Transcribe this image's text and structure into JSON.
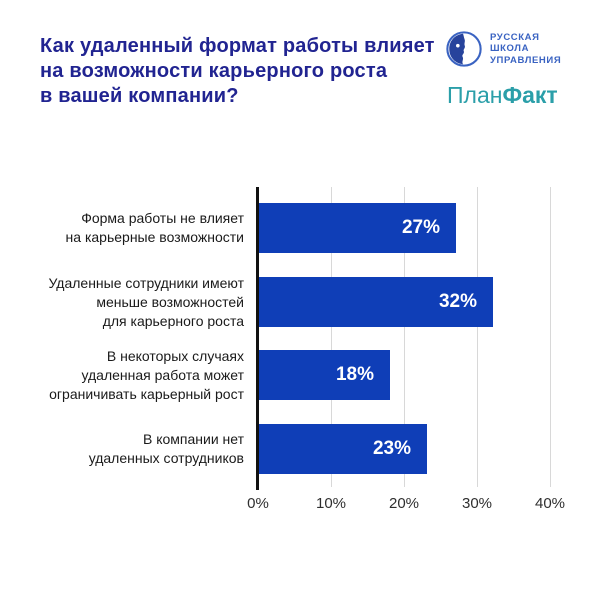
{
  "header": {
    "title": "Как удаленный формат работы влияет\nна возможности карьерного роста\nв вашей компании?",
    "rsu_logo": {
      "name": "Русская школа управления",
      "lines": [
        "РУССКАЯ",
        "ШКОЛА",
        "УПРАВЛЕНИЯ"
      ]
    },
    "planfact_logo": {
      "part1": "План",
      "part2": "Факт"
    }
  },
  "chart_data": {
    "type": "bar",
    "orientation": "horizontal",
    "title": "Как удаленный формат работы влияет на возможности карьерного роста в вашей компании?",
    "categories": [
      "Форма работы не влияет на карьерные возможности",
      "Удаленные сотрудники имеют меньше возможностей для карьерного роста",
      "В некоторых случаях удаленная работа может ограничивать карьерный рост",
      "В компании нет удаленных сотрудников"
    ],
    "values": [
      27,
      32,
      18,
      23
    ],
    "rows": [
      {
        "label": "Форма работы не влияет\nна карьерные возможности",
        "value": 27,
        "value_label": "27%"
      },
      {
        "label": "Удаленные сотрудники имеют\nменьше возможностей\nдля карьерного роста",
        "value": 32,
        "value_label": "32%"
      },
      {
        "label": "В некоторых случаях\nудаленная работа может\nограничивать карьерный рост",
        "value": 18,
        "value_label": "18%"
      },
      {
        "label": "В компании нет\nудаленных сотрудников",
        "value": 23,
        "value_label": "23%"
      }
    ],
    "ticks": [
      {
        "value": 0,
        "label": "0%"
      },
      {
        "value": 10,
        "label": "10%"
      },
      {
        "value": 20,
        "label": "20%"
      },
      {
        "value": 30,
        "label": "30%"
      },
      {
        "value": 40,
        "label": "40%"
      }
    ],
    "xlim": [
      0,
      40
    ],
    "xlabel": "",
    "ylabel": "",
    "grid": "vertical",
    "legend": "none"
  },
  "colors": {
    "bar_blue": "#0f3eb7",
    "title_navy": "#212491",
    "rsu_blue": "#3a63c2",
    "planfact_teal": "#2b9fa9",
    "axis_black": "#111111",
    "gridline_gray": "#d8d8d8",
    "category_text": "#1a1a1a",
    "tick_text": "#2f2f2f",
    "value_text": "#ffffff",
    "background": "#ffffff"
  }
}
